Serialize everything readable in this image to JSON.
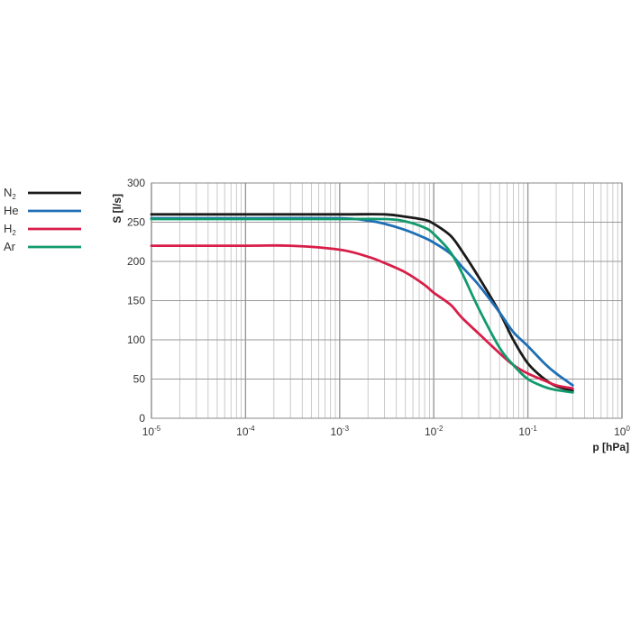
{
  "chart_data": {
    "type": "line",
    "xlabel": "p [hPa]",
    "ylabel": "S [l/s]",
    "xscale": "log",
    "xlim": [
      1e-05,
      1
    ],
    "ylim": [
      0,
      300
    ],
    "grid": true,
    "legend_position": "left",
    "x_ticks": [
      {
        "value": 1e-05,
        "base": "10",
        "exp": "-5"
      },
      {
        "value": 0.0001,
        "base": "10",
        "exp": "-4"
      },
      {
        "value": 0.001,
        "base": "10",
        "exp": "-3"
      },
      {
        "value": 0.01,
        "base": "10",
        "exp": "-2"
      },
      {
        "value": 0.1,
        "base": "10",
        "exp": "-1"
      },
      {
        "value": 1,
        "base": "10",
        "exp": "0"
      }
    ],
    "y_ticks": [
      {
        "value": 0,
        "label": "0"
      },
      {
        "value": 50,
        "label": "50"
      },
      {
        "value": 100,
        "label": "100"
      },
      {
        "value": 150,
        "label": "150"
      },
      {
        "value": 200,
        "label": "200"
      },
      {
        "value": 250,
        "label": "250"
      },
      {
        "value": 300,
        "label": "300"
      }
    ],
    "series": [
      {
        "name": "N2",
        "label_main": "N",
        "label_sub": "2",
        "color": "#1a1a1a",
        "x": [
          1e-05,
          0.0001,
          0.001,
          0.003,
          0.005,
          0.008,
          0.01,
          0.015,
          0.02,
          0.03,
          0.05,
          0.07,
          0.1,
          0.15,
          0.2,
          0.3
        ],
        "y": [
          260,
          260,
          260,
          260,
          257,
          253,
          248,
          233,
          213,
          180,
          135,
          100,
          70,
          50,
          41,
          35
        ]
      },
      {
        "name": "He",
        "label_main": "He",
        "label_sub": "",
        "color": "#1f6fb5",
        "x": [
          1e-05,
          0.0001,
          0.001,
          0.002,
          0.003,
          0.005,
          0.008,
          0.01,
          0.015,
          0.02,
          0.03,
          0.05,
          0.07,
          0.1,
          0.15,
          0.2,
          0.3
        ],
        "y": [
          255,
          255,
          255,
          252,
          248,
          240,
          230,
          224,
          210,
          193,
          170,
          135,
          110,
          92,
          70,
          57,
          42
        ]
      },
      {
        "name": "H2",
        "label_main": "H",
        "label_sub": "2",
        "color": "#d81e48",
        "x": [
          1e-05,
          0.0001,
          0.0003,
          0.001,
          0.002,
          0.003,
          0.005,
          0.008,
          0.01,
          0.015,
          0.02,
          0.03,
          0.05,
          0.07,
          0.1,
          0.15,
          0.2,
          0.3
        ],
        "y": [
          220,
          220,
          220,
          215,
          206,
          198,
          186,
          170,
          160,
          145,
          128,
          108,
          83,
          68,
          57,
          48,
          42,
          38
        ]
      },
      {
        "name": "Ar",
        "label_main": "Ar",
        "label_sub": "",
        "color": "#119a6e",
        "x": [
          1e-05,
          0.0001,
          0.001,
          0.003,
          0.005,
          0.008,
          0.01,
          0.015,
          0.02,
          0.03,
          0.05,
          0.07,
          0.1,
          0.15,
          0.2,
          0.3
        ],
        "y": [
          254,
          254,
          254,
          254,
          251,
          243,
          235,
          212,
          185,
          140,
          90,
          68,
          50,
          40,
          36,
          33
        ]
      }
    ]
  }
}
